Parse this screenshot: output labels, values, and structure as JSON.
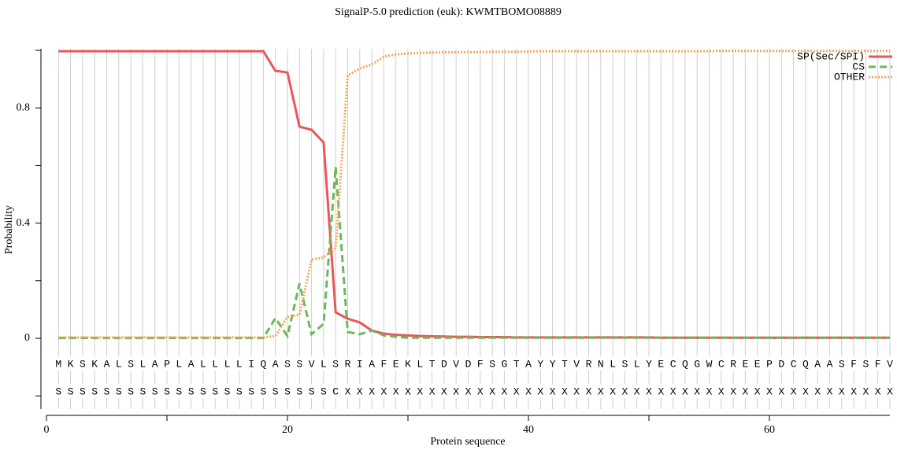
{
  "chart_data": {
    "type": "line",
    "title": "SignalP-5.0 prediction (euk):  KWMTBOMO08889",
    "xlabel": "Protein sequence",
    "ylabel": "Probability",
    "xlim": [
      0,
      70
    ],
    "ylim": [
      -0.25,
      1.0
    ],
    "xticks": [
      0,
      20,
      40,
      60
    ],
    "x_minor_ticks": [
      10,
      30,
      50
    ],
    "yticks": [
      0,
      0.4,
      0.8
    ],
    "y_minor_ticks": [
      -0.2,
      0.2,
      0.6,
      1.0
    ],
    "grid": true,
    "legend": "upper right",
    "x": [
      1,
      2,
      3,
      4,
      5,
      6,
      7,
      8,
      9,
      10,
      11,
      12,
      13,
      14,
      15,
      16,
      17,
      18,
      19,
      20,
      21,
      22,
      23,
      24,
      25,
      26,
      27,
      28,
      29,
      30,
      31,
      32,
      33,
      34,
      35,
      36,
      37,
      38,
      39,
      40,
      41,
      42,
      43,
      44,
      45,
      46,
      47,
      48,
      49,
      50,
      51,
      52,
      53,
      54,
      55,
      56,
      57,
      58,
      59,
      60,
      61,
      62,
      63,
      64,
      65,
      66,
      67,
      68,
      69,
      70
    ],
    "sequence": [
      "M",
      "K",
      "S",
      "K",
      "A",
      "L",
      "S",
      "L",
      "A",
      "P",
      "L",
      "A",
      "L",
      "L",
      "L",
      "L",
      "I",
      "Q",
      "A",
      "S",
      "S",
      "V",
      "L",
      "S",
      "R",
      "I",
      "A",
      "F",
      "E",
      "K",
      "L",
      "T",
      "D",
      "V",
      "D",
      "F",
      "S",
      "G",
      "T",
      "A",
      "Y",
      "Y",
      "T",
      "V",
      "R",
      "N",
      "L",
      "S",
      "L",
      "Y",
      "E",
      "C",
      "Q",
      "G",
      "W",
      "C",
      "R",
      "E",
      "E",
      "P",
      "D",
      "C",
      "Q",
      "A",
      "A",
      "S",
      "F",
      "S",
      "F",
      "V"
    ],
    "labels": [
      "S",
      "S",
      "S",
      "S",
      "S",
      "S",
      "S",
      "S",
      "S",
      "S",
      "S",
      "S",
      "S",
      "S",
      "S",
      "S",
      "S",
      "S",
      "S",
      "S",
      "S",
      "S",
      "S",
      "C",
      "X",
      "X",
      "X",
      "X",
      "X",
      "X",
      "X",
      "X",
      "X",
      "X",
      "X",
      "X",
      "X",
      "X",
      "X",
      "X",
      "X",
      "X",
      "X",
      "X",
      "X",
      "X",
      "X",
      "X",
      "X",
      "X",
      "X",
      "X",
      "X",
      "X",
      "X",
      "X",
      "X",
      "X",
      "X",
      "X",
      "X",
      "X",
      "X",
      "X",
      "X",
      "X",
      "X",
      "X",
      "X",
      "X"
    ],
    "series": [
      {
        "name": "SP(Sec/SPI)",
        "color": "#e8575a",
        "dash": "solid",
        "values": [
          0.997,
          0.997,
          0.997,
          0.997,
          0.997,
          0.997,
          0.997,
          0.997,
          0.997,
          0.997,
          0.997,
          0.997,
          0.997,
          0.997,
          0.997,
          0.997,
          0.997,
          0.997,
          0.929,
          0.923,
          0.735,
          0.724,
          0.68,
          0.09,
          0.068,
          0.055,
          0.027,
          0.016,
          0.012,
          0.01,
          0.008,
          0.007,
          0.006,
          0.005,
          0.005,
          0.004,
          0.004,
          0.004,
          0.003,
          0.003,
          0.003,
          0.003,
          0.003,
          0.003,
          0.003,
          0.003,
          0.003,
          0.003,
          0.003,
          0.003,
          0.002,
          0.002,
          0.002,
          0.002,
          0.002,
          0.002,
          0.002,
          0.002,
          0.002,
          0.002,
          0.002,
          0.002,
          0.002,
          0.002,
          0.002,
          0.002,
          0.002,
          0.002,
          0.002,
          0.002
        ]
      },
      {
        "name": "CS",
        "color": "#6cb85a",
        "dash": "dashed",
        "values": [
          0.001,
          0.001,
          0.001,
          0.001,
          0.001,
          0.001,
          0.001,
          0.001,
          0.001,
          0.001,
          0.001,
          0.001,
          0.001,
          0.001,
          0.001,
          0.001,
          0.001,
          0.001,
          0.07,
          0.008,
          0.19,
          0.014,
          0.05,
          0.595,
          0.022,
          0.014,
          0.027,
          0.01,
          0.005,
          0.002,
          0.002,
          0.002,
          0.002,
          0.002,
          0.002,
          0.002,
          0.002,
          0.002,
          0.002,
          0.002,
          0.002,
          0.002,
          0.002,
          0.002,
          0.002,
          0.002,
          0.002,
          0.002,
          0.002,
          0.002,
          0.002,
          0.002,
          0.002,
          0.002,
          0.002,
          0.002,
          0.002,
          0.002,
          0.002,
          0.002,
          0.002,
          0.002,
          0.002,
          0.002,
          0.002,
          0.002,
          0.002,
          0.002,
          0.002,
          0.002
        ]
      },
      {
        "name": "OTHER",
        "color": "#f5a65b",
        "dash": "dotted",
        "values": [
          0.003,
          0.003,
          0.003,
          0.003,
          0.003,
          0.003,
          0.003,
          0.003,
          0.003,
          0.003,
          0.003,
          0.003,
          0.003,
          0.003,
          0.003,
          0.003,
          0.003,
          0.003,
          0.008,
          0.074,
          0.082,
          0.273,
          0.281,
          0.314,
          0.913,
          0.937,
          0.951,
          0.978,
          0.986,
          0.989,
          0.991,
          0.992,
          0.993,
          0.993,
          0.994,
          0.994,
          0.995,
          0.995,
          0.995,
          0.996,
          0.997,
          0.997,
          0.997,
          0.997,
          0.997,
          0.997,
          0.997,
          0.997,
          0.997,
          0.997,
          0.997,
          0.997,
          0.997,
          0.997,
          0.997,
          0.998,
          0.998,
          0.998,
          0.998,
          0.998,
          0.998,
          0.998,
          0.998,
          0.998,
          0.998,
          0.998,
          0.998,
          0.998,
          0.998,
          0.998
        ]
      }
    ]
  }
}
